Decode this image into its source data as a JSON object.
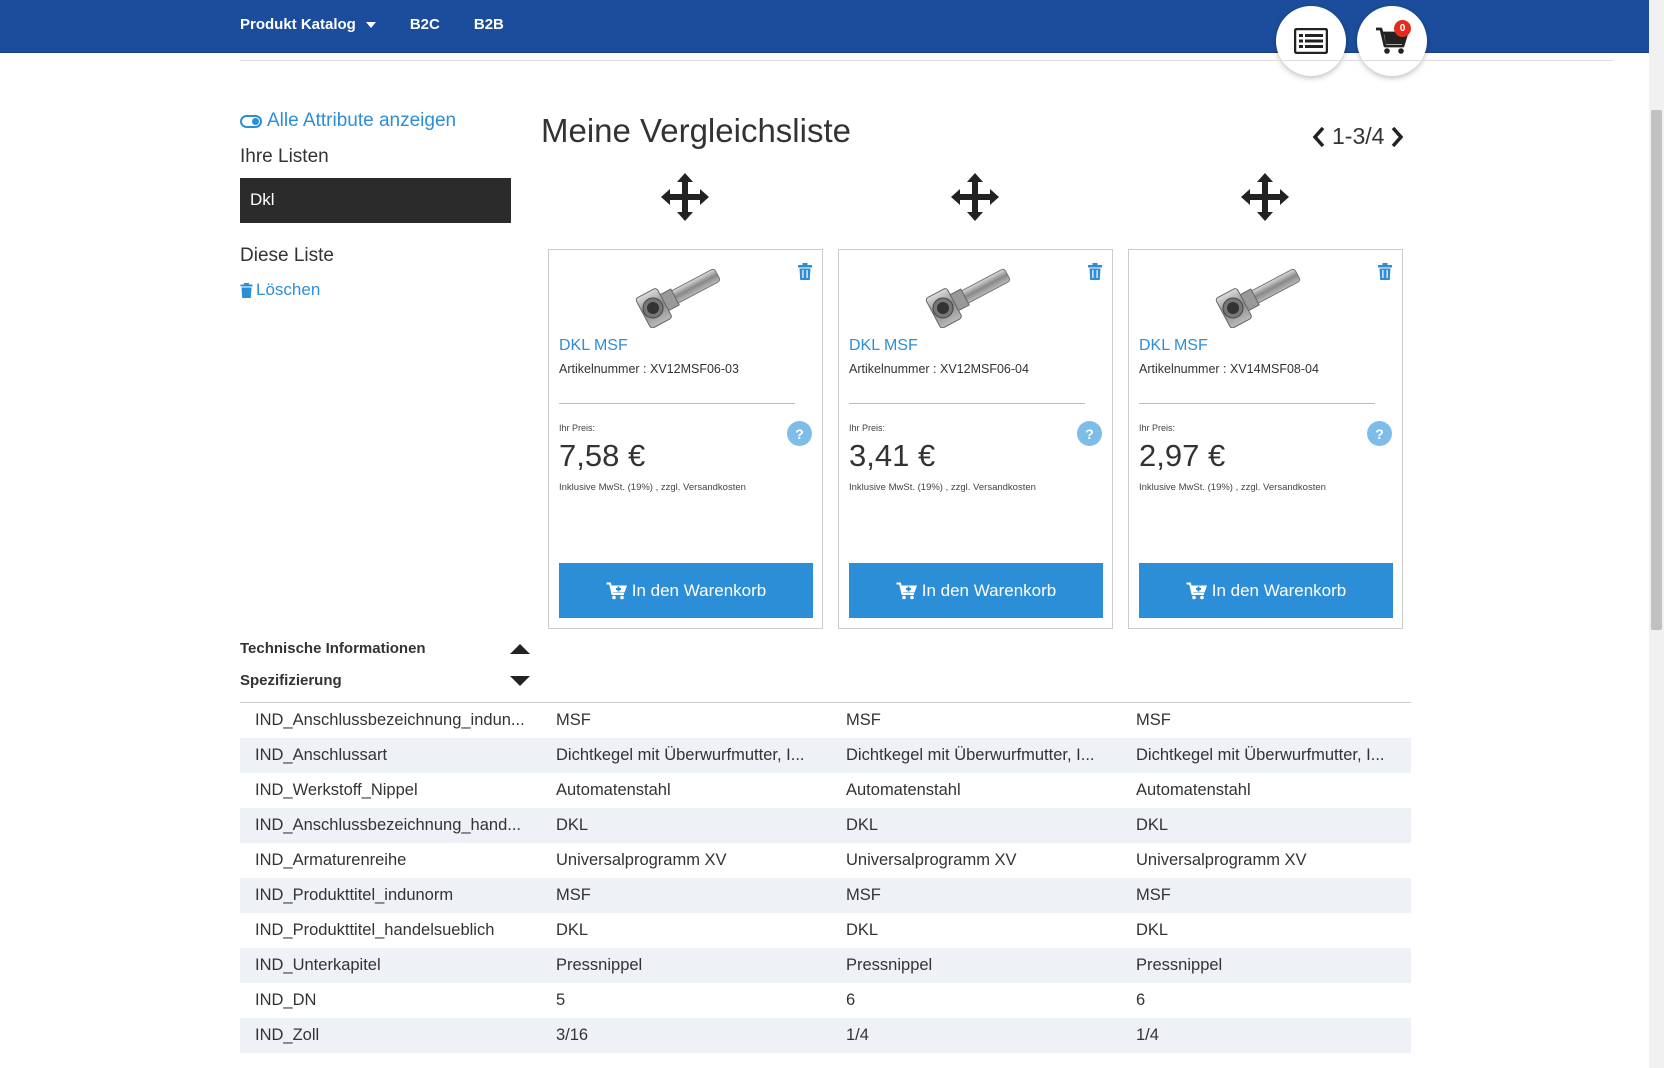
{
  "nav": {
    "items": [
      {
        "label": "Produkt Katalog",
        "has_dropdown": true
      },
      {
        "label": "B2C",
        "has_dropdown": false
      },
      {
        "label": "B2B",
        "has_dropdown": false
      }
    ],
    "cart_count": "0"
  },
  "sidebar": {
    "toggle_label": "Alle Attribute anzeigen",
    "lists_heading": "Ihre Listen",
    "selected_list": "Dkl",
    "this_list_heading": "Diese Liste",
    "delete_label": "Löschen"
  },
  "main": {
    "title": "Meine Vergleichsliste",
    "pager": "1-3/4"
  },
  "products": [
    {
      "name": "DKL MSF",
      "sku": "Artikelnummer : XV12MSF06-03",
      "price_label": "Ihr Preis:",
      "price": "7,58 €",
      "vat": "Inklusive MwSt. (19%) , zzgl. Versandkosten",
      "cart_label": "In den Warenkorb"
    },
    {
      "name": "DKL MSF",
      "sku": "Artikelnummer : XV12MSF06-04",
      "price_label": "Ihr Preis:",
      "price": "3,41 €",
      "vat": "Inklusive MwSt. (19%) , zzgl. Versandkosten",
      "cart_label": "In den Warenkorb"
    },
    {
      "name": "DKL MSF",
      "sku": "Artikelnummer : XV14MSF08-04",
      "price_label": "Ihr Preis:",
      "price": "2,97 €",
      "vat": "Inklusive MwSt. (19%) , zzgl. Versandkosten",
      "cart_label": "In den Warenkorb"
    }
  ],
  "sections": {
    "tech_info": "Technische Informationen",
    "spec": "Spezifizierung"
  },
  "spec_rows": [
    [
      "IND_Anschlussbezeichnung_indun...",
      "MSF",
      "MSF",
      "MSF"
    ],
    [
      "IND_Anschlussart",
      "Dichtkegel mit Überwurfmutter, I...",
      "Dichtkegel mit Überwurfmutter, I...",
      "Dichtkegel mit Überwurfmutter, I..."
    ],
    [
      "IND_Werkstoff_Nippel",
      "Automatenstahl",
      "Automatenstahl",
      "Automatenstahl"
    ],
    [
      "IND_Anschlussbezeichnung_hand...",
      "DKL",
      "DKL",
      "DKL"
    ],
    [
      "IND_Armaturenreihe",
      "Universalprogramm XV",
      "Universalprogramm XV",
      "Universalprogramm XV"
    ],
    [
      "IND_Produkttitel_indunorm",
      "MSF",
      "MSF",
      "MSF"
    ],
    [
      "IND_Produkttitel_handelsueblich",
      "DKL",
      "DKL",
      "DKL"
    ],
    [
      "IND_Unterkapitel",
      "Pressnippel",
      "Pressnippel",
      "Pressnippel"
    ],
    [
      "IND_DN",
      "5",
      "6",
      "6"
    ],
    [
      "IND_Zoll",
      "3/16",
      "1/4",
      "1/4"
    ]
  ],
  "colors": {
    "nav_bg": "#1c4d9c",
    "accent": "#2d8ed8",
    "badge": "#e52b1f",
    "row_alt": "#eef1f5"
  },
  "icons": [
    "chevron-down-icon",
    "list-icon",
    "shopping-cart-icon",
    "toggle-icon",
    "trash-icon",
    "chevron-left-icon",
    "chevron-right-icon",
    "move-icon",
    "help-icon",
    "cart-plus-icon",
    "triangle-up-icon",
    "triangle-down-icon"
  ]
}
